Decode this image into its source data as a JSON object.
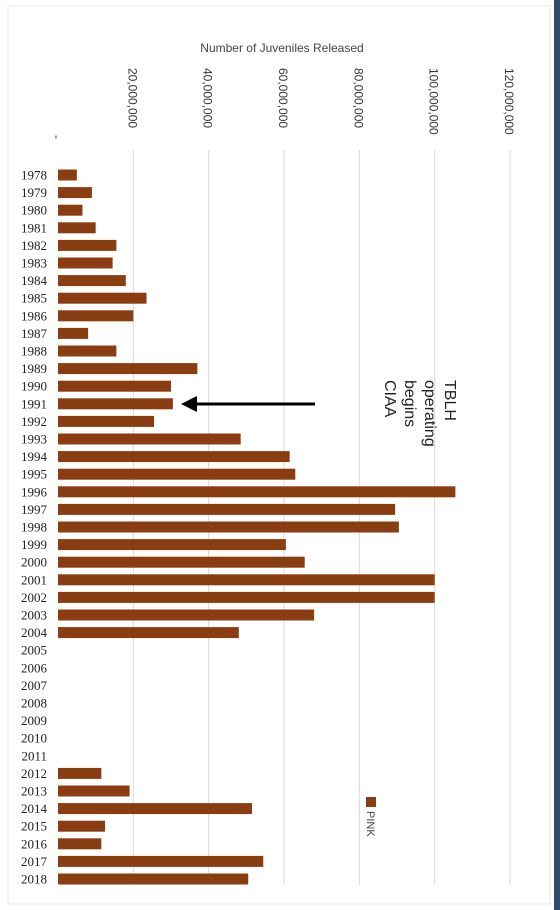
{
  "colors": {
    "bar": "#8b3d12",
    "grid": "#d9d9d9",
    "frame_right": "#2f4d6b",
    "annotation_arrow": "#000000"
  },
  "chart_data": {
    "type": "bar",
    "orientation": "horizontal",
    "title": "Number of Juveniles Released",
    "xlabel": "",
    "ylabel": "",
    "categories": [
      "1978",
      "1979",
      "1980",
      "1981",
      "1982",
      "1983",
      "1984",
      "1985",
      "1986",
      "1987",
      "1988",
      "1989",
      "1990",
      "1991",
      "1992",
      "1993",
      "1994",
      "1995",
      "1996",
      "1997",
      "1998",
      "1999",
      "2000",
      "2001",
      "2002",
      "2003",
      "2004",
      "2005",
      "2006",
      "2007",
      "2008",
      "2009",
      "2010",
      "2011",
      "2012",
      "2013",
      "2014",
      "2015",
      "2016",
      "2017",
      "2018"
    ],
    "series": [
      {
        "name": "PINK",
        "values": [
          5000000,
          9000000,
          6500000,
          10000000,
          15500000,
          14500000,
          18000000,
          23500000,
          20000000,
          8000000,
          15500000,
          37000000,
          30000000,
          30500000,
          25500000,
          48500000,
          61500000,
          63000000,
          105500000,
          89500000,
          90500000,
          60500000,
          65500000,
          100000000,
          100000000,
          68000000,
          48000000,
          0,
          0,
          0,
          0,
          0,
          0,
          0,
          11500000,
          19000000,
          51500000,
          12500000,
          11500000,
          54500000,
          50500000
        ]
      }
    ],
    "xlim": [
      0,
      120000000
    ],
    "ticks": [
      "-",
      "20,000,000",
      "40,000,000",
      "60,000,000",
      "80,000,000",
      "100,000,000",
      "120,000,000"
    ],
    "grid": true,
    "legend": {
      "position": "bottom-right",
      "entries": [
        "PINK"
      ]
    },
    "annotations": [
      {
        "text": "CIAA begins operating TBLH",
        "points_to_category": "1991"
      }
    ]
  }
}
